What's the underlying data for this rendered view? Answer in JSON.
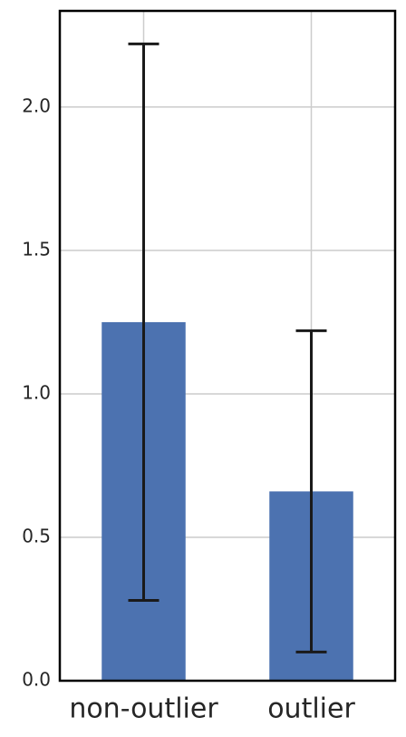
{
  "chart_data": {
    "type": "bar",
    "categories": [
      "non-outlier",
      "outlier"
    ],
    "values": [
      1.25,
      0.66
    ],
    "errors": [
      0.97,
      0.56
    ],
    "color": "#4c72b0",
    "ylim": [
      0,
      2.335
    ],
    "yticks": [
      {
        "value": 0,
        "label": "0.0"
      },
      {
        "value": 0.5,
        "label": "0.5"
      },
      {
        "value": 1,
        "label": "1.0"
      },
      {
        "value": 1.5,
        "label": "1.5"
      },
      {
        "value": 2,
        "label": "2.0"
      }
    ],
    "grid": true
  }
}
